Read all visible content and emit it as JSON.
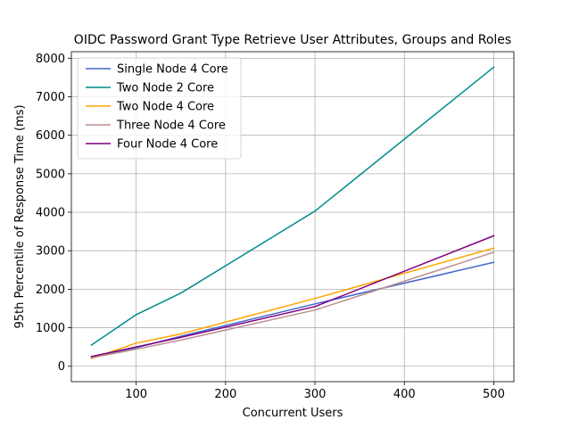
{
  "chart_data": {
    "type": "line",
    "title": "OIDC Password Grant Type Retrieve User Attributes, Groups and Roles",
    "xlabel": "Concurrent Users",
    "ylabel": "95th Percentile of Response Time (ms)",
    "x": [
      50,
      100,
      150,
      300,
      500
    ],
    "xlim": [
      27.5,
      522.5
    ],
    "ylim": [
      -400,
      8170
    ],
    "xticks": [
      100,
      200,
      300,
      400,
      500
    ],
    "yticks": [
      0,
      1000,
      2000,
      3000,
      4000,
      5000,
      6000,
      7000,
      8000
    ],
    "grid": true,
    "legend_position": "upper left",
    "series": [
      {
        "name": "Single Node 4 Core",
        "color": "#4466cc",
        "values": [
          250,
          480,
          780,
          1620,
          2700
        ]
      },
      {
        "name": "Two Node 2 Core",
        "color": "#008b8b",
        "values": [
          550,
          1340,
          1900,
          4030,
          7770
        ]
      },
      {
        "name": "Two Node 4 Core",
        "color": "#ffa500",
        "values": [
          200,
          600,
          840,
          1760,
          3070
        ]
      },
      {
        "name": "Three Node 4 Core",
        "color": "#bc8f8f",
        "values": [
          220,
          440,
          680,
          1460,
          2960
        ]
      },
      {
        "name": "Four Node 4 Core",
        "color": "#800080",
        "values": [
          250,
          500,
          750,
          1550,
          3390
        ]
      }
    ]
  }
}
